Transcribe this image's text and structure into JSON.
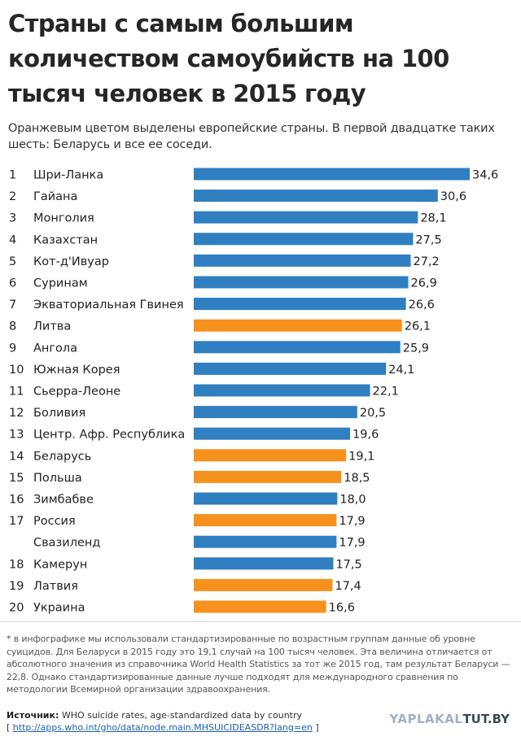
{
  "header": {
    "title": "Страны с самым большим количеством самоубийств на 100 тысяч человек в 2015 году",
    "subtitle": "Оранжевым цветом выделены европейские страны. В первой двадцатке таких шесть: Беларусь и все ее соседи."
  },
  "colors": {
    "default_bar": "#2f7fc1",
    "european_bar": "#f7911e"
  },
  "chart_data": {
    "type": "bar",
    "orientation": "horizontal",
    "xlim": [
      0,
      34.6
    ],
    "grid": false,
    "rows": [
      {
        "rank": "1",
        "country": "Шри-Ланка",
        "value": 34.6,
        "label": "34,6",
        "european": false
      },
      {
        "rank": "2",
        "country": "Гайана",
        "value": 30.6,
        "label": "30,6",
        "european": false
      },
      {
        "rank": "3",
        "country": "Монголия",
        "value": 28.1,
        "label": "28,1",
        "european": false
      },
      {
        "rank": "4",
        "country": "Казахстан",
        "value": 27.5,
        "label": "27,5",
        "european": false
      },
      {
        "rank": "5",
        "country": "Кот-д'Ивуар",
        "value": 27.2,
        "label": "27,2",
        "european": false
      },
      {
        "rank": "6",
        "country": "Суринам",
        "value": 26.9,
        "label": "26,9",
        "european": false
      },
      {
        "rank": "7",
        "country": "Экваториальная Гвинея",
        "value": 26.6,
        "label": "26,6",
        "european": false
      },
      {
        "rank": "8",
        "country": "Литва",
        "value": 26.1,
        "label": "26,1",
        "european": true
      },
      {
        "rank": "9",
        "country": "Ангола",
        "value": 25.9,
        "label": "25,9",
        "european": false
      },
      {
        "rank": "10",
        "country": "Южная Корея",
        "value": 24.1,
        "label": "24,1",
        "european": false
      },
      {
        "rank": "11",
        "country": "Сьерра-Леоне",
        "value": 22.1,
        "label": "22,1",
        "european": false
      },
      {
        "rank": "12",
        "country": "Боливия",
        "value": 20.5,
        "label": "20,5",
        "european": false
      },
      {
        "rank": "13",
        "country": "Центр. Афр. Республика",
        "value": 19.6,
        "label": "19,6",
        "european": false
      },
      {
        "rank": "14",
        "country": "Беларусь",
        "value": 19.1,
        "label": "19,1",
        "european": true
      },
      {
        "rank": "15",
        "country": "Польша",
        "value": 18.5,
        "label": "18,5",
        "european": true
      },
      {
        "rank": "16",
        "country": "Зимбабве",
        "value": 18.0,
        "label": "18,0",
        "european": false
      },
      {
        "rank": "17",
        "country": "Россия",
        "value": 17.9,
        "label": "17,9",
        "european": true
      },
      {
        "rank": "",
        "country": "Свазиленд",
        "value": 17.9,
        "label": "17,9",
        "european": false
      },
      {
        "rank": "18",
        "country": "Камерун",
        "value": 17.5,
        "label": "17,5",
        "european": false
      },
      {
        "rank": "19",
        "country": "Латвия",
        "value": 17.4,
        "label": "17,4",
        "european": true
      },
      {
        "rank": "20",
        "country": "Украина",
        "value": 16.6,
        "label": "16,6",
        "european": true
      }
    ]
  },
  "footnote": "* в инфографике мы использовали стандартизированные по возрастным группам данные об уровне суицидов. Для Беларуси в 2015 году это 19,1 случай на 100 тысяч человек. Эта величина отличается от абсолютного значения из справочника World Health Statistics за тот же 2015 год, там результат Беларуси — 22,8. Однако стандартизированные данные лучше подходят для международного сравнения по методологии Всемирной организации здравоохранения.",
  "source": {
    "heading": "Источник:",
    "text": "WHO suicide rates, age-standardized data by country",
    "link": "http://apps.who.int/gho/data/node.main.MHSUICIDEASDR?lang=en",
    "bracket_open": "[",
    "bracket_close": "]"
  },
  "brand": {
    "prefix": "YAPLAKAL",
    "name": "TUT.BY"
  }
}
